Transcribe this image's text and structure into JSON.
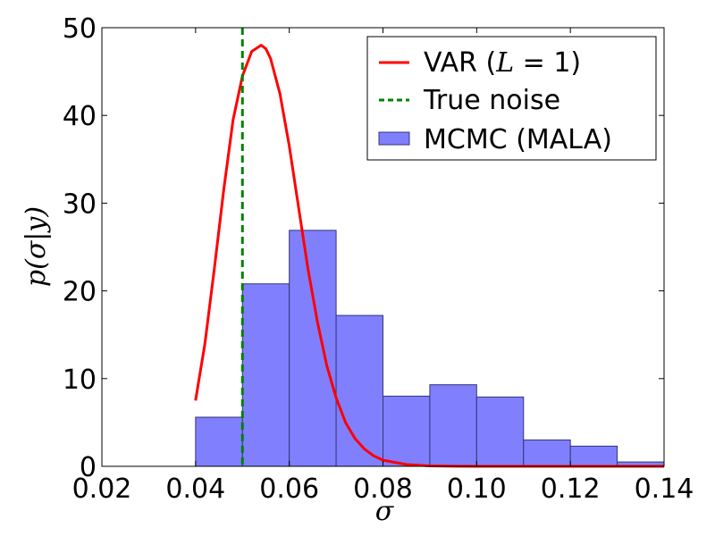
{
  "chart_data": {
    "type": "bar",
    "title": "",
    "xlabel": "σ",
    "ylabel": "p(σ|y)",
    "xlim": [
      0.02,
      0.14
    ],
    "ylim": [
      0,
      50
    ],
    "xticks": [
      "0.02",
      "0.04",
      "0.06",
      "0.08",
      "0.10",
      "0.12",
      "0.14"
    ],
    "xtick_values": [
      0.02,
      0.04,
      0.06,
      0.08,
      0.1,
      0.12,
      0.14
    ],
    "yticks": [
      "0",
      "10",
      "20",
      "30",
      "40",
      "50"
    ],
    "ytick_values": [
      0,
      10,
      20,
      30,
      40,
      50
    ],
    "legend": {
      "location": "upper right",
      "entries": [
        {
          "label_main": "VAR (",
          "label_math": "L",
          "label_tail": " = 1)",
          "style": "line",
          "color": "#ff0000"
        },
        {
          "label_main": "True noise",
          "style": "dashed",
          "color": "#008000"
        },
        {
          "label_main": "MCMC (MALA)",
          "style": "patch",
          "color": "#8080ff"
        }
      ]
    },
    "histogram": {
      "name": "MCMC (MALA)",
      "color": "#8080ff",
      "bin_edges": [
        0.04,
        0.05,
        0.06,
        0.07,
        0.08,
        0.09,
        0.1,
        0.11,
        0.12,
        0.13,
        0.14
      ],
      "values": [
        5.6,
        20.8,
        26.9,
        17.2,
        8.0,
        9.3,
        7.9,
        3.0,
        2.3,
        0.5
      ]
    },
    "curve": {
      "name": "VAR (L=1)",
      "color": "#ff0000",
      "x": [
        0.04,
        0.042,
        0.044,
        0.046,
        0.048,
        0.05,
        0.052,
        0.054,
        0.055,
        0.056,
        0.058,
        0.06,
        0.062,
        0.064,
        0.066,
        0.068,
        0.07,
        0.072,
        0.074,
        0.076,
        0.078,
        0.08,
        0.085,
        0.09,
        0.095,
        0.1,
        0.11,
        0.12,
        0.13,
        0.14
      ],
      "y": [
        7.5,
        14.0,
        22.5,
        31.5,
        39.5,
        44.5,
        47.3,
        48.0,
        47.6,
        46.5,
        42.5,
        36.5,
        29.5,
        22.5,
        16.5,
        11.5,
        7.8,
        5.0,
        3.2,
        2.0,
        1.2,
        0.7,
        0.2,
        0.05,
        0.01,
        0.0,
        0.0,
        0.0,
        0.0,
        0.0
      ]
    },
    "vline": {
      "name": "True noise",
      "x": 0.05,
      "color": "#008000"
    }
  }
}
